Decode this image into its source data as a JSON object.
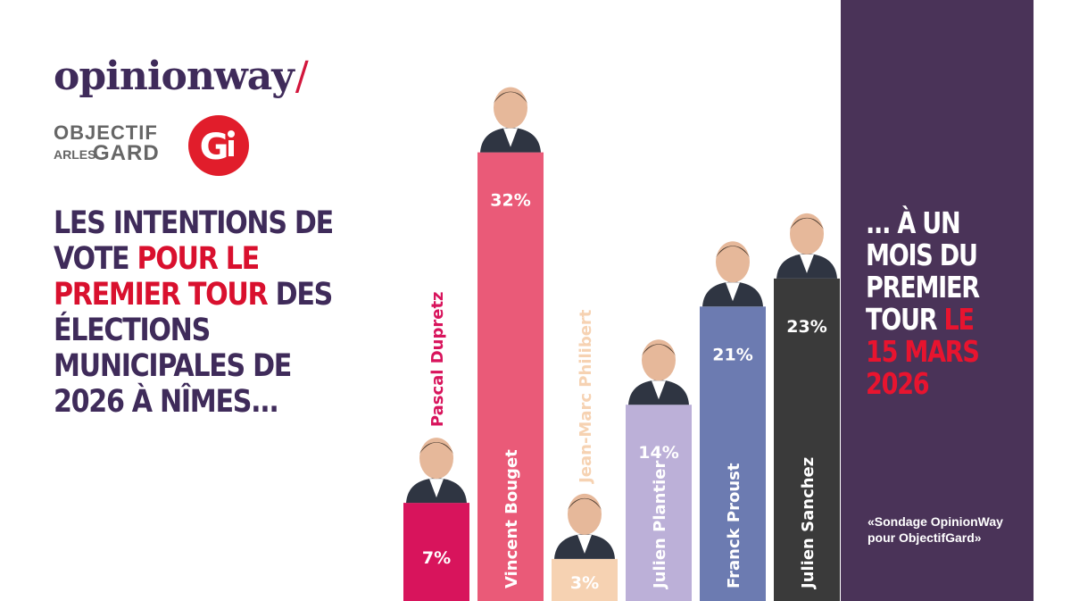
{
  "brand": {
    "opinionway": "opinionway",
    "objectif_line1": "OBJECTIF",
    "objectif_arles": "ARLES",
    "objectif_gard": "GARD",
    "og_letter": "G",
    "accent_red": "#d9102e",
    "purple": "#4a3358"
  },
  "headline": {
    "part1": "LES INTENTIONS DE VOTE ",
    "part2": "POUR LE PREMIER TOUR",
    "part3": " DES ÉLECTIONS MUNICIPALES DE 2026 À NÎMES..."
  },
  "right": {
    "part1": "... À UN MOIS DU PREMIER TOUR ",
    "part2": "LE 15 MARS 2026",
    "source": "«Sondage OpinionWay pour ObjectifGard»"
  },
  "chart_data": {
    "type": "bar",
    "categories": [
      "Pascal Dupretz",
      "Vincent Bouget",
      "Jean-Marc Philibert",
      "Julien Plantier",
      "Franck Proust",
      "Julien Sanchez"
    ],
    "values": [
      7,
      32,
      3,
      14,
      21,
      23
    ],
    "value_labels": [
      "7%",
      "32%",
      "3%",
      "14%",
      "21%",
      "23%"
    ],
    "colors": [
      "#d8145c",
      "#ea5a78",
      "#f6d2b2",
      "#bcb0d8",
      "#6c7bb1",
      "#3a3a3a"
    ],
    "name_colors": [
      "#d8145c",
      "#ffffff",
      "#f6d2b2",
      "#ffffff",
      "#ffffff",
      "#ffffff"
    ],
    "value_label_colors": [
      "#ffffff",
      "#ffffff",
      "#ffffff",
      "#ffffff",
      "#ffffff",
      "#ffffff"
    ],
    "name_placement": [
      "above",
      "inside",
      "above",
      "inside",
      "inside",
      "inside"
    ],
    "xlabel": "",
    "ylabel": ""
  }
}
